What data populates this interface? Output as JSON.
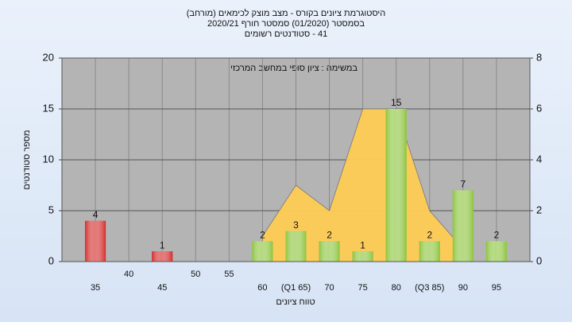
{
  "chart_data": {
    "type": "bar",
    "title": [
      "היסטוגרמת ציונים בקורס - מצב מוצק לכימאים (מורחב)",
      "בסמסטר (01/2020) סמסטר חורף 2020/21",
      "41 - סטודנטים רשומים"
    ],
    "annotation": "במשימה : ציון סופי במחשב המרכזי",
    "x_label": "טווח ציונים",
    "y_label": "מספר סטודנטים",
    "categories": [
      "35",
      "40",
      "45",
      "50",
      "55",
      "60",
      "(Q1 65)",
      "70",
      "75",
      "80",
      "(Q3 85)",
      "90",
      "95"
    ],
    "series": [
      {
        "values": [
          4,
          null,
          1,
          null,
          null,
          2,
          3,
          2,
          1,
          15,
          2,
          7,
          2
        ],
        "colors": [
          "#d42a2a",
          null,
          "#d42a2a",
          null,
          null,
          "#8cc43c",
          "#8cc43c",
          "#8cc43c",
          "#8cc43c",
          "#8cc43c",
          "#8cc43c",
          "#8cc43c",
          "#8cc43c"
        ]
      },
      {
        "type": "area",
        "axis": "y2",
        "color": "#ffcc55",
        "values": [
          null,
          null,
          null,
          null,
          null,
          1,
          3,
          2,
          6,
          6,
          2,
          0.5,
          null
        ]
      }
    ],
    "ylim": [
      0,
      20
    ],
    "yticks": [
      0,
      5,
      10,
      15,
      20
    ],
    "y2lim": [
      0,
      8
    ],
    "y2ticks": [
      0,
      2,
      4,
      6,
      8
    ],
    "grid": true
  }
}
